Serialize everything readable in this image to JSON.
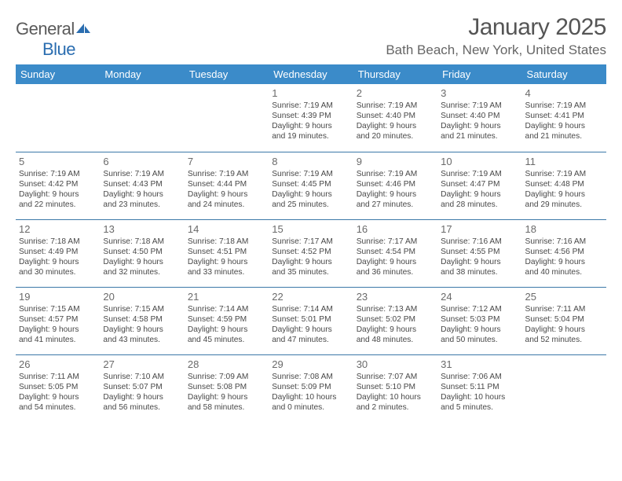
{
  "brand": {
    "name_a": "General",
    "name_b": "Blue"
  },
  "title": "January 2025",
  "location": "Bath Beach, New York, United States",
  "colors": {
    "header_bg": "#3b8bc9",
    "header_text": "#ffffff",
    "rule": "#3b78a8",
    "text": "#484848",
    "daynum": "#6a6a6a",
    "logo_blue": "#2a6db0"
  },
  "weekdays": [
    "Sunday",
    "Monday",
    "Tuesday",
    "Wednesday",
    "Thursday",
    "Friday",
    "Saturday"
  ],
  "weeks": [
    [
      null,
      null,
      null,
      {
        "n": "1",
        "sr": "7:19 AM",
        "ss": "4:39 PM",
        "dh": "9",
        "dm": "19"
      },
      {
        "n": "2",
        "sr": "7:19 AM",
        "ss": "4:40 PM",
        "dh": "9",
        "dm": "20"
      },
      {
        "n": "3",
        "sr": "7:19 AM",
        "ss": "4:40 PM",
        "dh": "9",
        "dm": "21"
      },
      {
        "n": "4",
        "sr": "7:19 AM",
        "ss": "4:41 PM",
        "dh": "9",
        "dm": "21"
      }
    ],
    [
      {
        "n": "5",
        "sr": "7:19 AM",
        "ss": "4:42 PM",
        "dh": "9",
        "dm": "22"
      },
      {
        "n": "6",
        "sr": "7:19 AM",
        "ss": "4:43 PM",
        "dh": "9",
        "dm": "23"
      },
      {
        "n": "7",
        "sr": "7:19 AM",
        "ss": "4:44 PM",
        "dh": "9",
        "dm": "24"
      },
      {
        "n": "8",
        "sr": "7:19 AM",
        "ss": "4:45 PM",
        "dh": "9",
        "dm": "25"
      },
      {
        "n": "9",
        "sr": "7:19 AM",
        "ss": "4:46 PM",
        "dh": "9",
        "dm": "27"
      },
      {
        "n": "10",
        "sr": "7:19 AM",
        "ss": "4:47 PM",
        "dh": "9",
        "dm": "28"
      },
      {
        "n": "11",
        "sr": "7:19 AM",
        "ss": "4:48 PM",
        "dh": "9",
        "dm": "29"
      }
    ],
    [
      {
        "n": "12",
        "sr": "7:18 AM",
        "ss": "4:49 PM",
        "dh": "9",
        "dm": "30"
      },
      {
        "n": "13",
        "sr": "7:18 AM",
        "ss": "4:50 PM",
        "dh": "9",
        "dm": "32"
      },
      {
        "n": "14",
        "sr": "7:18 AM",
        "ss": "4:51 PM",
        "dh": "9",
        "dm": "33"
      },
      {
        "n": "15",
        "sr": "7:17 AM",
        "ss": "4:52 PM",
        "dh": "9",
        "dm": "35"
      },
      {
        "n": "16",
        "sr": "7:17 AM",
        "ss": "4:54 PM",
        "dh": "9",
        "dm": "36"
      },
      {
        "n": "17",
        "sr": "7:16 AM",
        "ss": "4:55 PM",
        "dh": "9",
        "dm": "38"
      },
      {
        "n": "18",
        "sr": "7:16 AM",
        "ss": "4:56 PM",
        "dh": "9",
        "dm": "40"
      }
    ],
    [
      {
        "n": "19",
        "sr": "7:15 AM",
        "ss": "4:57 PM",
        "dh": "9",
        "dm": "41"
      },
      {
        "n": "20",
        "sr": "7:15 AM",
        "ss": "4:58 PM",
        "dh": "9",
        "dm": "43"
      },
      {
        "n": "21",
        "sr": "7:14 AM",
        "ss": "4:59 PM",
        "dh": "9",
        "dm": "45"
      },
      {
        "n": "22",
        "sr": "7:14 AM",
        "ss": "5:01 PM",
        "dh": "9",
        "dm": "47"
      },
      {
        "n": "23",
        "sr": "7:13 AM",
        "ss": "5:02 PM",
        "dh": "9",
        "dm": "48"
      },
      {
        "n": "24",
        "sr": "7:12 AM",
        "ss": "5:03 PM",
        "dh": "9",
        "dm": "50"
      },
      {
        "n": "25",
        "sr": "7:11 AM",
        "ss": "5:04 PM",
        "dh": "9",
        "dm": "52"
      }
    ],
    [
      {
        "n": "26",
        "sr": "7:11 AM",
        "ss": "5:05 PM",
        "dh": "9",
        "dm": "54"
      },
      {
        "n": "27",
        "sr": "7:10 AM",
        "ss": "5:07 PM",
        "dh": "9",
        "dm": "56"
      },
      {
        "n": "28",
        "sr": "7:09 AM",
        "ss": "5:08 PM",
        "dh": "9",
        "dm": "58"
      },
      {
        "n": "29",
        "sr": "7:08 AM",
        "ss": "5:09 PM",
        "dh": "10",
        "dm": "0"
      },
      {
        "n": "30",
        "sr": "7:07 AM",
        "ss": "5:10 PM",
        "dh": "10",
        "dm": "2"
      },
      {
        "n": "31",
        "sr": "7:06 AM",
        "ss": "5:11 PM",
        "dh": "10",
        "dm": "5"
      },
      null
    ]
  ],
  "labels": {
    "sunrise": "Sunrise:",
    "sunset": "Sunset:",
    "daylight": "Daylight:",
    "hours_word": "hours",
    "and_word": "and",
    "minutes_suffix": "minutes."
  }
}
